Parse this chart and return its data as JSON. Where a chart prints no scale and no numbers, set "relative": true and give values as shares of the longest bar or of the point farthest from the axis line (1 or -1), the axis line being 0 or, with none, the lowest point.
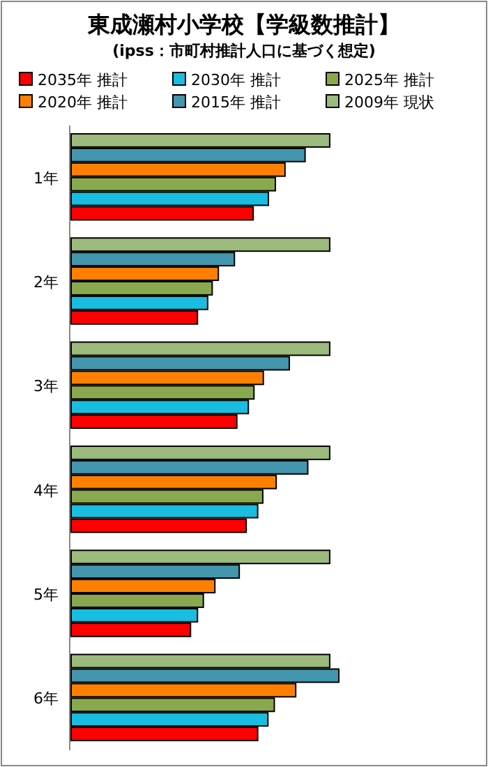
{
  "chart_data": {
    "type": "bar",
    "orientation": "horizontal",
    "relative": true,
    "title": "東成瀬村小学校【学級数推計】",
    "subtitle": "(ipss：市町村推計人口に基づく想定)",
    "categories": [
      "1年",
      "2年",
      "3年",
      "4年",
      "5年",
      "6年"
    ],
    "legend": "top",
    "series": [
      {
        "name": "2035年 推計",
        "color": "#ff0000",
        "values": [
          0.68,
          0.472,
          0.619,
          0.654,
          0.446,
          0.697
        ]
      },
      {
        "name": "2030年 推計",
        "color": "#19bde0",
        "values": [
          0.737,
          0.51,
          0.662,
          0.697,
          0.472,
          0.735
        ]
      },
      {
        "name": "2025年 推計",
        "color": "#8aa84e",
        "values": [
          0.763,
          0.527,
          0.683,
          0.716,
          0.494,
          0.759
        ]
      },
      {
        "name": "2020年 推計",
        "color": "#ff8000",
        "values": [
          0.799,
          0.55,
          0.718,
          0.766,
          0.537,
          0.839
        ]
      },
      {
        "name": "2015年 推計",
        "color": "#4496ae",
        "values": [
          0.874,
          0.61,
          0.815,
          0.884,
          0.628,
          1
        ]
      },
      {
        "name": "2009年 現状",
        "color": "#9cba7c",
        "values": [
          0.966,
          0.966,
          0.966,
          0.966,
          0.966,
          0.966
        ]
      }
    ]
  }
}
